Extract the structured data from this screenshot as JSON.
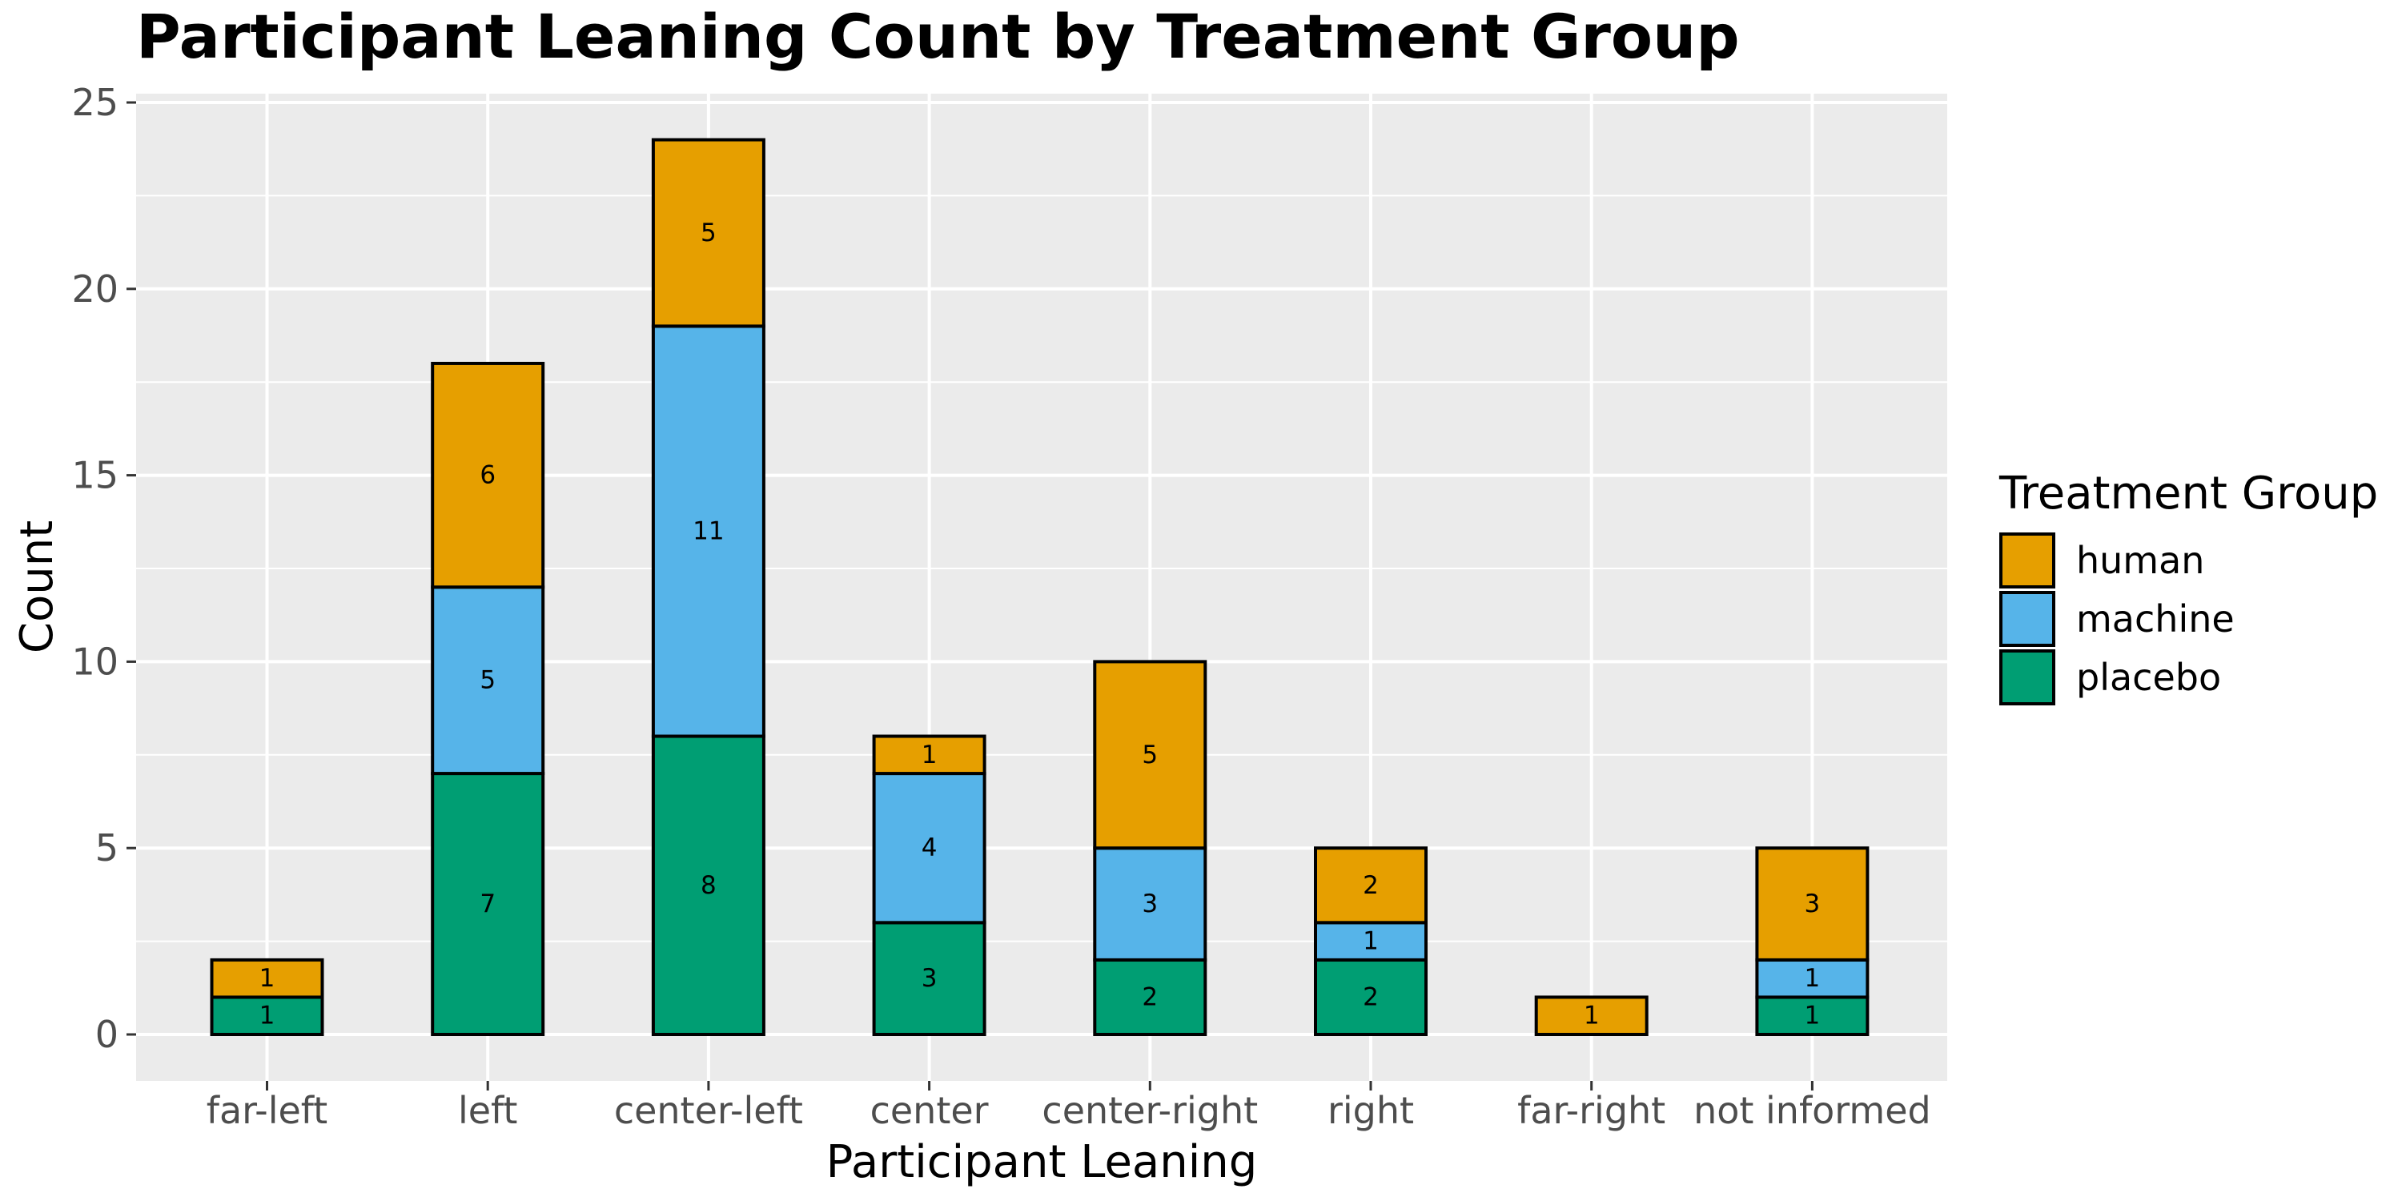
{
  "chart_data": {
    "type": "bar",
    "stacked": true,
    "title": "Participant Leaning Count by Treatment Group",
    "xlabel": "Participant Leaning",
    "ylabel": "Count",
    "ylim": [
      0,
      25
    ],
    "yticks": [
      0,
      5,
      10,
      15,
      20,
      25
    ],
    "grid": true,
    "legend_position": "right",
    "legend_title": "Treatment Group",
    "categories": [
      "far-left",
      "left",
      "center-left",
      "center",
      "center-right",
      "right",
      "far-right",
      "not informed"
    ],
    "series": [
      {
        "name": "placebo",
        "color": "#009E73",
        "values": [
          1,
          7,
          8,
          3,
          2,
          2,
          0,
          1
        ]
      },
      {
        "name": "machine",
        "color": "#56B4E9",
        "values": [
          0,
          5,
          11,
          4,
          3,
          1,
          0,
          1
        ]
      },
      {
        "name": "human",
        "color": "#E69F00",
        "values": [
          1,
          6,
          5,
          1,
          5,
          2,
          1,
          3
        ]
      }
    ],
    "legend_order": [
      "human",
      "machine",
      "placebo"
    ]
  },
  "colors": {
    "panel_background": "#EBEBEB",
    "grid": "#FFFFFF",
    "bar_outline": "#000000",
    "tick_text": "#4D4D4D"
  }
}
